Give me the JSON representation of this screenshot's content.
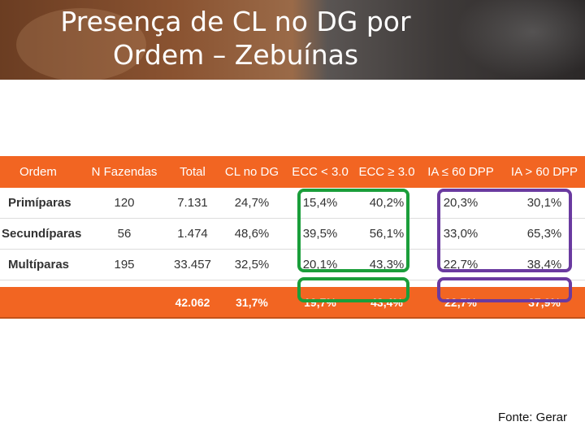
{
  "title": {
    "line1": "Presença de CL no DG por",
    "line2": "Ordem – Zebuínas"
  },
  "table": {
    "headers": [
      "Ordem",
      "N Fazendas",
      "Total",
      "CL no DG",
      "ECC < 3.0",
      "ECC ≥ 3.0",
      "IA ≤ 60 DPP",
      "IA > 60 DPP"
    ],
    "rows": [
      [
        "Primíparas",
        "120",
        "7.131",
        "24,7%",
        "15,4%",
        "40,2%",
        "20,3%",
        "30,1%"
      ],
      [
        "Secundíparas",
        "56",
        "1.474",
        "48,6%",
        "39,5%",
        "56,1%",
        "33,0%",
        "65,3%"
      ],
      [
        "Multíparas",
        "195",
        "33.457",
        "32,5%",
        "20,1%",
        "43,3%",
        "22,7%",
        "38,4%"
      ]
    ],
    "total": [
      "",
      "",
      "42.062",
      "31,7%",
      "19,7%",
      "43,4%",
      "22,7%",
      "37,9%"
    ]
  },
  "source": "Fonte: Gerar",
  "colors": {
    "header_bg": "#f26522",
    "highlight_green": "#1a9e3a",
    "highlight_purple": "#6a3aa0"
  }
}
